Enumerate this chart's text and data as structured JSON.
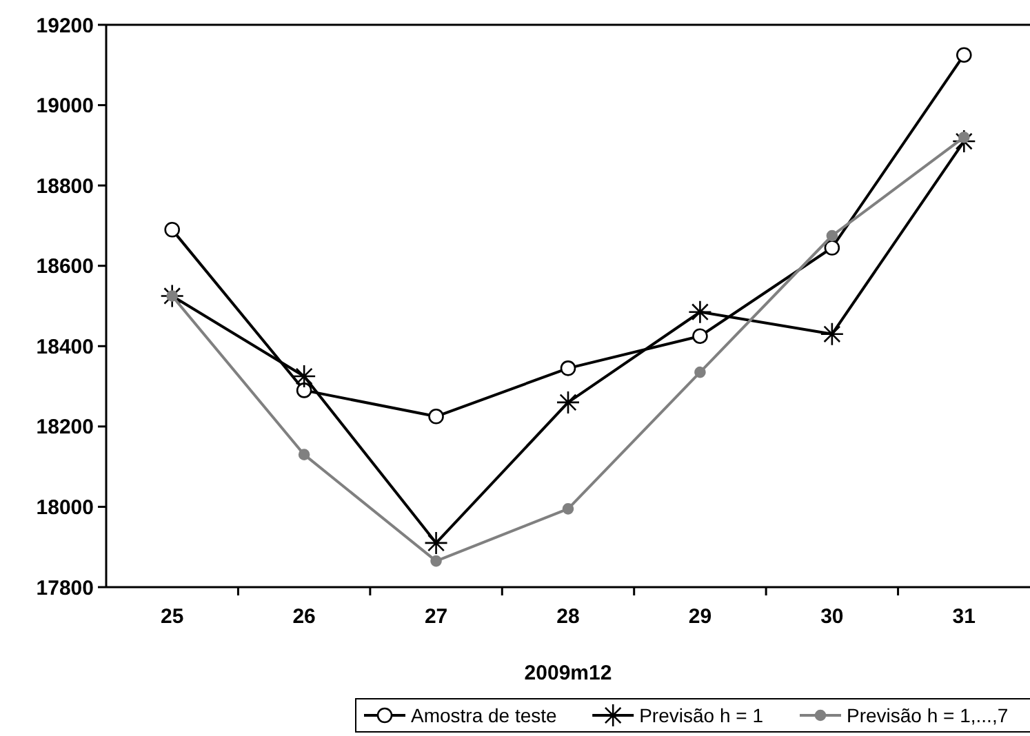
{
  "chart_data": {
    "type": "line",
    "xlabel": "2009m12",
    "categories": [
      "25",
      "26",
      "27",
      "28",
      "29",
      "30",
      "31"
    ],
    "ylim": [
      17800,
      19200
    ],
    "yticks": [
      17800,
      18000,
      18200,
      18400,
      18600,
      18800,
      19000,
      19200
    ],
    "grid": false,
    "legend": "bottom",
    "line_style": "solid",
    "series": [
      {
        "name": "Amostra de teste",
        "color": "#000000",
        "marker": "circle",
        "values": [
          18690,
          18290,
          18225,
          18345,
          18425,
          18645,
          19125
        ]
      },
      {
        "name": "Previsão h = 1",
        "color": "#000000",
        "marker": "cross",
        "values": [
          18525,
          18325,
          17910,
          18260,
          18485,
          18430,
          18910
        ]
      },
      {
        "name": "Previsão h = 1,...,7",
        "color": "#808080",
        "marker": "circle",
        "values": [
          18525,
          18130,
          17865,
          17995,
          18335,
          18675,
          18920
        ]
      }
    ]
  }
}
